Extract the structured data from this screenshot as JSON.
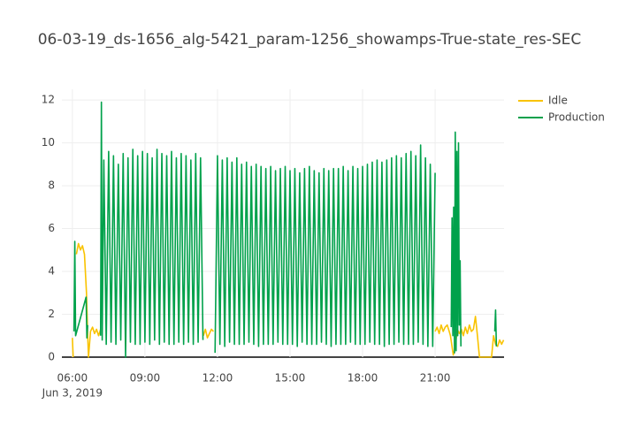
{
  "chart_data": {
    "type": "line",
    "title": "06-03-19_ds-1656_alg-5421_param-1256_showamps-True-state_res-SEC",
    "xlim": [
      "05:34",
      "23:51"
    ],
    "xticks": [
      "06:00",
      "09:00",
      "12:00",
      "15:00",
      "18:00",
      "21:00"
    ],
    "x_date_label": "Jun 3, 2019",
    "ylim": [
      0,
      12.5
    ],
    "yticks": [
      0,
      2,
      4,
      6,
      8,
      10,
      12
    ],
    "grid": true,
    "legend": "top-right",
    "series": [
      {
        "name": "Idle",
        "color": "#f9c300",
        "x": [
          "06:00",
          "06:02",
          "06:05",
          "06:10",
          "06:15",
          "06:20",
          "06:25",
          "06:30",
          "06:35",
          "06:38",
          "06:40",
          "06:45",
          "06:50",
          "06:55",
          "07:00",
          "07:05",
          "07:10",
          "07:20",
          "11:25",
          "11:30",
          "11:35",
          "11:40",
          "11:45",
          "11:50",
          "11:55",
          "21:00",
          "21:05",
          "21:10",
          "21:15",
          "21:20",
          "21:25",
          "21:30",
          "21:35",
          "21:38",
          "21:45",
          "21:50",
          "21:55",
          "22:00",
          "22:05",
          "22:10",
          "22:15",
          "22:20",
          "22:25",
          "22:30",
          "22:35",
          "22:40",
          "22:45",
          "22:50",
          "23:20",
          "23:25",
          "23:30",
          "23:35",
          "23:40",
          "23:45",
          "23:50"
        ],
        "values": [
          0.9,
          0,
          null,
          4.8,
          5.3,
          5.0,
          5.2,
          4.8,
          3.0,
          1.0,
          0,
          1.2,
          1.4,
          1.1,
          1.3,
          1.0,
          1.3,
          null,
          1.0,
          1.3,
          0.9,
          1.1,
          1.3,
          1.2,
          null,
          1.2,
          1.4,
          1.1,
          1.5,
          1.2,
          1.4,
          1.5,
          1.2,
          1.0,
          0.1,
          0.5,
          1.3,
          1.1,
          1.3,
          1.0,
          1.4,
          1.1,
          1.5,
          1.2,
          1.3,
          1.9,
          1.0,
          0,
          0,
          1.0,
          0.6,
          0.5,
          0.8,
          0.6,
          0.8
        ]
      },
      {
        "name": "Production",
        "color": "#00a14b",
        "x": [
          "06:04",
          "06:06",
          "06:08",
          "06:34",
          "06:36",
          "06:38",
          "06:50",
          "07:10",
          "07:12",
          "07:14",
          "07:18",
          "07:24",
          "07:30",
          "07:36",
          "07:42",
          "07:48",
          "07:54",
          "08:00",
          "08:06",
          "08:12",
          "08:18",
          "08:24",
          "08:30",
          "08:36",
          "08:42",
          "08:48",
          "08:54",
          "09:00",
          "09:06",
          "09:12",
          "09:18",
          "09:24",
          "09:30",
          "09:36",
          "09:42",
          "09:48",
          "09:54",
          "10:00",
          "10:06",
          "10:12",
          "10:18",
          "10:24",
          "10:30",
          "10:36",
          "10:42",
          "10:48",
          "10:54",
          "11:00",
          "11:06",
          "11:12",
          "11:18",
          "11:24",
          "11:40",
          "11:54",
          "12:00",
          "12:06",
          "12:12",
          "12:18",
          "12:24",
          "12:30",
          "12:36",
          "12:42",
          "12:48",
          "12:54",
          "13:00",
          "13:06",
          "13:12",
          "13:18",
          "13:24",
          "13:30",
          "13:36",
          "13:42",
          "13:48",
          "13:54",
          "14:00",
          "14:06",
          "14:12",
          "14:18",
          "14:24",
          "14:30",
          "14:36",
          "14:42",
          "14:48",
          "14:54",
          "15:00",
          "15:06",
          "15:12",
          "15:18",
          "15:24",
          "15:30",
          "15:36",
          "15:42",
          "15:48",
          "15:54",
          "16:00",
          "16:06",
          "16:12",
          "16:18",
          "16:24",
          "16:30",
          "16:36",
          "16:42",
          "16:48",
          "16:54",
          "17:00",
          "17:06",
          "17:12",
          "17:18",
          "17:24",
          "17:30",
          "17:36",
          "17:42",
          "17:48",
          "17:54",
          "18:00",
          "18:06",
          "18:12",
          "18:18",
          "18:24",
          "18:30",
          "18:36",
          "18:42",
          "18:48",
          "18:54",
          "19:00",
          "19:06",
          "19:12",
          "19:18",
          "19:24",
          "19:30",
          "19:36",
          "19:42",
          "19:48",
          "19:54",
          "20:00",
          "20:06",
          "20:12",
          "20:18",
          "20:24",
          "20:30",
          "20:36",
          "20:42",
          "20:48",
          "20:54",
          "21:00",
          "21:20",
          "21:40",
          "21:42",
          "21:44",
          "21:46",
          "21:48",
          "21:50",
          "21:52",
          "21:54",
          "21:56",
          "21:58",
          "22:00",
          "22:02",
          "22:04",
          "22:30",
          "23:28",
          "23:30",
          "23:32"
        ],
        "values": [
          1.2,
          5.4,
          1.0,
          2.8,
          0.9,
          1.5,
          null,
          1.0,
          11.9,
          0.8,
          9.2,
          0.6,
          9.6,
          0.7,
          9.4,
          0.6,
          9.0,
          0.8,
          9.5,
          0.0,
          9.3,
          0.7,
          9.7,
          0.6,
          9.4,
          0.6,
          9.6,
          0.7,
          9.5,
          0.6,
          9.3,
          0.8,
          9.7,
          0.6,
          9.5,
          0.7,
          9.4,
          0.6,
          9.6,
          0.6,
          9.3,
          0.7,
          9.5,
          0.6,
          9.4,
          0.7,
          9.2,
          0.6,
          9.5,
          0.7,
          9.3,
          0.8,
          null,
          0.2,
          9.4,
          0.6,
          9.2,
          0.5,
          9.3,
          0.7,
          9.1,
          0.6,
          9.3,
          0.6,
          9.0,
          0.6,
          9.1,
          0.7,
          8.9,
          0.6,
          9.0,
          0.5,
          8.9,
          0.6,
          8.8,
          0.6,
          8.9,
          0.6,
          8.7,
          0.7,
          8.8,
          0.6,
          8.9,
          0.6,
          8.7,
          0.6,
          8.8,
          0.5,
          8.6,
          0.7,
          8.8,
          0.6,
          8.9,
          0.6,
          8.7,
          0.6,
          8.6,
          0.7,
          8.8,
          0.6,
          8.7,
          0.5,
          8.8,
          0.6,
          8.8,
          0.6,
          8.9,
          0.6,
          8.7,
          0.7,
          8.9,
          0.6,
          8.8,
          0.6,
          8.9,
          0.6,
          9.0,
          0.7,
          9.1,
          0.6,
          9.2,
          0.6,
          9.1,
          0.5,
          9.2,
          0.6,
          9.3,
          0.6,
          9.4,
          0.7,
          9.3,
          0.6,
          9.5,
          0.6,
          9.6,
          0.6,
          9.4,
          0.7,
          9.9,
          0.6,
          9.3,
          0.5,
          9.0,
          0.5,
          8.6,
          null,
          1.4,
          6.5,
          1.0,
          7.0,
          0.2,
          10.5,
          0.3,
          9.6,
          1.0,
          10.0,
          1.5,
          4.5,
          0.5,
          null,
          1.2,
          2.2,
          0.5
        ]
      }
    ]
  }
}
